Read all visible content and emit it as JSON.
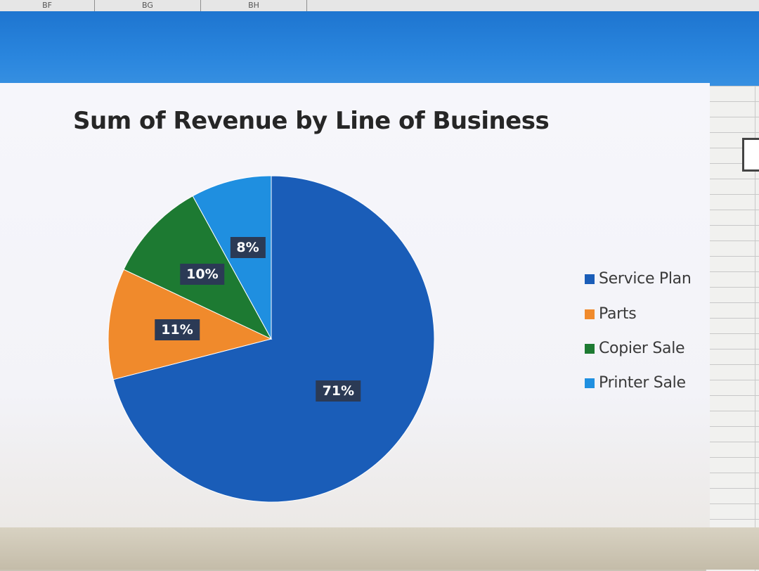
{
  "column_headers": [
    "BF",
    "BG",
    "BH"
  ],
  "colors": {
    "service_plan": "#1a5db8",
    "parts": "#f08a2c",
    "copier_sale": "#1d7a32",
    "printer_sale": "#1f8fe0"
  },
  "chart_data": {
    "type": "pie",
    "title": "Sum of Revenue by Line of Business",
    "categories": [
      "Service Plan",
      "Parts",
      "Copier Sale",
      "Printer Sale"
    ],
    "values": [
      71,
      11,
      10,
      8
    ],
    "data_labels": [
      "71%",
      "11%",
      "10%",
      "8%"
    ],
    "legend_position": "right"
  }
}
